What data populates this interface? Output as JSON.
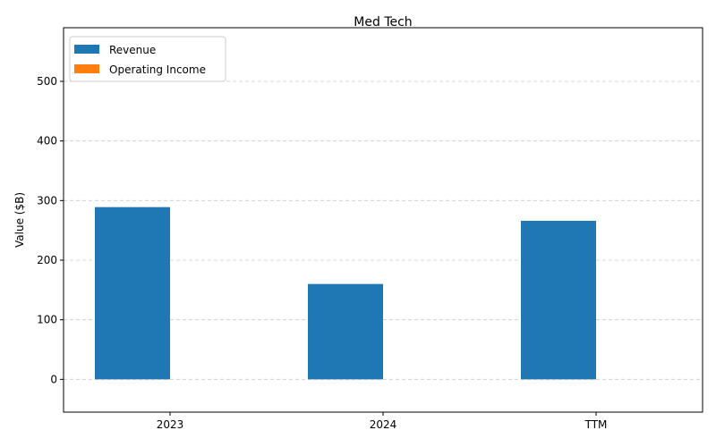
{
  "chart_data": {
    "type": "bar",
    "title": "Med Tech",
    "xlabel": "",
    "ylabel": "Value ($B)",
    "categories": [
      "2023",
      "2024",
      "TTM"
    ],
    "series": [
      {
        "name": "Revenue",
        "color": "#1f77b4",
        "values": [
          289,
          160,
          266
        ]
      },
      {
        "name": "Operating Income",
        "color": "#ff7f0e",
        "values": [
          0,
          0,
          0
        ]
      }
    ],
    "ylim": [
      -55,
      590
    ],
    "yticks": [
      0,
      100,
      200,
      300,
      400,
      500
    ],
    "grid": "horizontal dashed",
    "legend_position": "top-left"
  }
}
